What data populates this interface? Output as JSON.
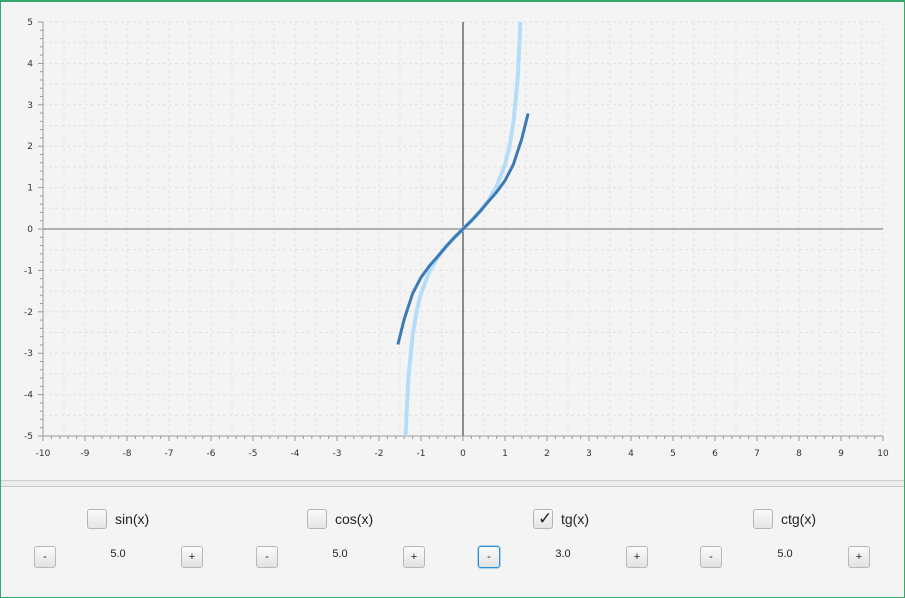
{
  "chart_data": {
    "type": "line",
    "xlim": [
      -10,
      10
    ],
    "ylim": [
      -5,
      5
    ],
    "x_ticks": [
      "-10",
      "-9",
      "-8",
      "-7",
      "-6",
      "-5",
      "-4",
      "-3",
      "-2",
      "-1",
      "0",
      "1",
      "2",
      "3",
      "4",
      "5",
      "6",
      "7",
      "8",
      "9",
      "10"
    ],
    "y_ticks": [
      "5",
      "4",
      "3",
      "2",
      "1",
      "0",
      "-1",
      "-2",
      "-3",
      "-4",
      "-5"
    ],
    "grid": true,
    "legend": "none",
    "series": [
      {
        "color": "#b6dcf8",
        "function": "tan(x)",
        "x": [
          -1.369,
          -1.3,
          -1.2,
          -1.1,
          -1.0,
          -0.8,
          -0.6,
          -0.4,
          -0.2,
          0,
          0.2,
          0.4,
          0.6,
          0.8,
          1.0,
          1.1,
          1.2,
          1.3,
          1.369
        ],
        "y": [
          -5.0,
          -3.6,
          -2.57,
          -1.96,
          -1.56,
          -1.03,
          -0.68,
          -0.42,
          -0.2,
          0,
          0.2,
          0.42,
          0.68,
          1.03,
          1.56,
          1.96,
          2.57,
          3.6,
          5.0
        ]
      },
      {
        "color": "#3d7ab5",
        "function": "approximation of tan(x)",
        "x": [
          -1.55,
          -1.4,
          -1.2,
          -1.0,
          -0.8,
          -0.6,
          -0.4,
          -0.2,
          0,
          0.2,
          0.4,
          0.6,
          0.8,
          1.0,
          1.2,
          1.4,
          1.55
        ],
        "y": [
          -2.79,
          -2.18,
          -1.56,
          -1.17,
          -0.89,
          -0.66,
          -0.42,
          -0.2,
          0,
          0.2,
          0.42,
          0.66,
          0.89,
          1.17,
          1.56,
          2.18,
          2.79
        ]
      }
    ]
  },
  "controls": [
    {
      "label": "sin(x)",
      "checked": false,
      "value": "5.0",
      "minus": "-",
      "plus": "+"
    },
    {
      "label": "cos(x)",
      "checked": false,
      "value": "5.0",
      "minus": "-",
      "plus": "+"
    },
    {
      "label": "tg(x)",
      "checked": true,
      "value": "3.0",
      "minus": "-",
      "plus": "+"
    },
    {
      "label": "ctg(x)",
      "checked": false,
      "value": "5.0",
      "minus": "-",
      "plus": "+"
    }
  ],
  "check_glyph": "✓"
}
